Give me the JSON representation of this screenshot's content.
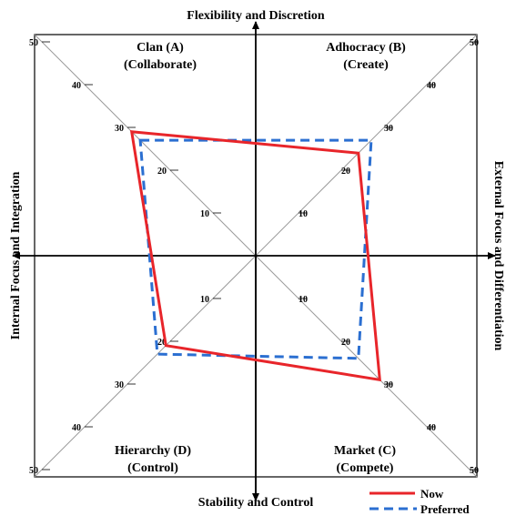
{
  "axes": {
    "top": "Flexibility and Discretion",
    "bottom": "Stability and Control",
    "left": "Internal Focus and Integration",
    "right": "External Focus and Differentiation"
  },
  "quadrants": {
    "top_left": {
      "name": "Clan (A)",
      "verb": "(Collaborate)"
    },
    "top_right": {
      "name": "Adhocracy  (B)",
      "verb": "(Create)"
    },
    "bottom_left": {
      "name": "Hierarchy (D)",
      "verb": "(Control)"
    },
    "bottom_right": {
      "name": "Market (C)",
      "verb": "(Compete)"
    }
  },
  "legend": {
    "now": "Now",
    "preferred": "Preferred"
  },
  "colors": {
    "now": "#e8252a",
    "preferred": "#2b6fd1",
    "axis": "#000000",
    "diagonal": "#9a9a9a"
  },
  "chart_data": {
    "type": "radar",
    "scale_ticks": [
      10,
      20,
      30,
      40,
      50
    ],
    "tick_labels": [
      "10",
      "20",
      "30",
      "40",
      "50"
    ],
    "axes_order": [
      "Clan (A)",
      "Adhocracy (B)",
      "Market (C)",
      "Hierarchy (D)"
    ],
    "series": [
      {
        "name": "Now",
        "values": {
          "A": 29,
          "B": 24,
          "C": 29,
          "D": 21
        }
      },
      {
        "name": "Preferred",
        "values": {
          "A": 27,
          "B": 27,
          "C": 24,
          "D": 23
        }
      }
    ]
  }
}
